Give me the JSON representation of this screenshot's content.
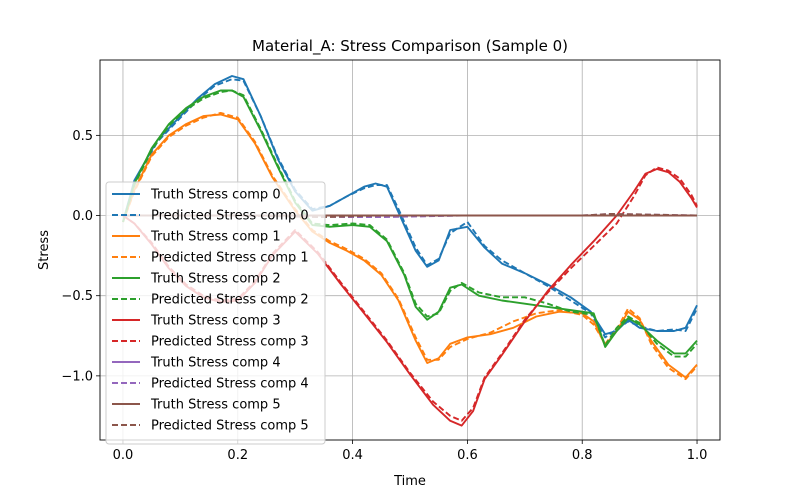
{
  "chart_data": {
    "type": "line",
    "title": "Material_A: Stress Comparison (Sample 0)",
    "xlabel": "Time",
    "ylabel": "Stress",
    "xlim": [
      -0.04,
      1.04
    ],
    "ylim": [
      -1.4,
      0.97
    ],
    "xticks": [
      0.0,
      0.2,
      0.4,
      0.6,
      0.8,
      1.0
    ],
    "xtick_labels": [
      "0.0",
      "0.2",
      "0.4",
      "0.6",
      "0.8",
      "1.0"
    ],
    "yticks": [
      0.5,
      0.0,
      -0.5,
      -1.0
    ],
    "ytick_labels": [
      "0.5",
      "0.0",
      "−0.5",
      "−1.0"
    ],
    "grid": true,
    "legend_position": "lower-left",
    "series": [
      {
        "name": "Truth Stress comp 0",
        "style": "solid",
        "color": "#1f77b4",
        "x": [
          0,
          0.02,
          0.06,
          0.1,
          0.13,
          0.16,
          0.19,
          0.21,
          0.24,
          0.27,
          0.3,
          0.33,
          0.36,
          0.39,
          0.42,
          0.44,
          0.46,
          0.48,
          0.51,
          0.53,
          0.55,
          0.57,
          0.6,
          0.63,
          0.66,
          0.7,
          0.74,
          0.78,
          0.815,
          0.84,
          0.86,
          0.88,
          0.9,
          0.93,
          0.96,
          0.98,
          1.0
        ],
        "y": [
          -0.04,
          0.22,
          0.47,
          0.62,
          0.73,
          0.82,
          0.87,
          0.85,
          0.62,
          0.35,
          0.15,
          0.03,
          0.06,
          0.12,
          0.18,
          0.2,
          0.18,
          0.02,
          -0.22,
          -0.32,
          -0.28,
          -0.09,
          -0.07,
          -0.2,
          -0.3,
          -0.36,
          -0.43,
          -0.51,
          -0.6,
          -0.74,
          -0.72,
          -0.65,
          -0.7,
          -0.72,
          -0.72,
          -0.7,
          -0.56
        ]
      },
      {
        "name": "Predicted Stress comp 0",
        "style": "dashed",
        "color": "#1f77b4",
        "x": [
          0,
          0.02,
          0.06,
          0.1,
          0.13,
          0.16,
          0.19,
          0.21,
          0.24,
          0.27,
          0.3,
          0.33,
          0.36,
          0.39,
          0.42,
          0.44,
          0.46,
          0.48,
          0.51,
          0.53,
          0.55,
          0.57,
          0.6,
          0.63,
          0.66,
          0.7,
          0.74,
          0.78,
          0.815,
          0.84,
          0.86,
          0.88,
          0.9,
          0.93,
          0.96,
          0.98,
          1.0
        ],
        "y": [
          -0.04,
          0.21,
          0.46,
          0.61,
          0.72,
          0.81,
          0.85,
          0.84,
          0.62,
          0.36,
          0.16,
          0.04,
          0.06,
          0.12,
          0.17,
          0.19,
          0.19,
          0.04,
          -0.2,
          -0.31,
          -0.27,
          -0.11,
          -0.04,
          -0.19,
          -0.28,
          -0.36,
          -0.44,
          -0.53,
          -0.61,
          -0.76,
          -0.71,
          -0.66,
          -0.69,
          -0.72,
          -0.71,
          -0.72,
          -0.58
        ]
      },
      {
        "name": "Truth Stress comp 1",
        "style": "solid",
        "color": "#ff7f0e",
        "x": [
          0,
          0.02,
          0.05,
          0.08,
          0.11,
          0.14,
          0.17,
          0.2,
          0.23,
          0.26,
          0.3,
          0.33,
          0.36,
          0.39,
          0.42,
          0.45,
          0.48,
          0.51,
          0.53,
          0.55,
          0.57,
          0.6,
          0.64,
          0.68,
          0.72,
          0.76,
          0.8,
          0.82,
          0.84,
          0.86,
          0.88,
          0.9,
          0.92,
          0.95,
          0.98,
          1.0
        ],
        "y": [
          -0.04,
          0.16,
          0.38,
          0.5,
          0.57,
          0.62,
          0.63,
          0.6,
          0.45,
          0.24,
          0.03,
          -0.1,
          -0.17,
          -0.22,
          -0.28,
          -0.37,
          -0.53,
          -0.78,
          -0.92,
          -0.89,
          -0.8,
          -0.76,
          -0.74,
          -0.7,
          -0.63,
          -0.6,
          -0.61,
          -0.66,
          -0.81,
          -0.72,
          -0.6,
          -0.65,
          -0.78,
          -0.93,
          -1.01,
          -0.93
        ]
      },
      {
        "name": "Predicted Stress comp 1",
        "style": "dashed",
        "color": "#ff7f0e",
        "x": [
          0,
          0.02,
          0.05,
          0.08,
          0.11,
          0.14,
          0.17,
          0.2,
          0.23,
          0.26,
          0.3,
          0.33,
          0.36,
          0.39,
          0.42,
          0.45,
          0.48,
          0.51,
          0.53,
          0.55,
          0.57,
          0.6,
          0.64,
          0.68,
          0.72,
          0.76,
          0.8,
          0.82,
          0.84,
          0.86,
          0.88,
          0.9,
          0.92,
          0.95,
          0.98,
          1.0
        ],
        "y": [
          -0.04,
          0.15,
          0.37,
          0.49,
          0.56,
          0.61,
          0.64,
          0.61,
          0.46,
          0.25,
          0.04,
          -0.09,
          -0.16,
          -0.21,
          -0.27,
          -0.36,
          -0.52,
          -0.76,
          -0.9,
          -0.9,
          -0.82,
          -0.77,
          -0.73,
          -0.66,
          -0.61,
          -0.59,
          -0.62,
          -0.68,
          -0.8,
          -0.71,
          -0.58,
          -0.64,
          -0.8,
          -0.95,
          -1.02,
          -0.94
        ]
      },
      {
        "name": "Truth Stress comp 2",
        "style": "solid",
        "color": "#2ca02c",
        "x": [
          0,
          0.02,
          0.05,
          0.08,
          0.11,
          0.14,
          0.17,
          0.19,
          0.21,
          0.24,
          0.27,
          0.3,
          0.33,
          0.36,
          0.4,
          0.43,
          0.46,
          0.49,
          0.51,
          0.53,
          0.55,
          0.57,
          0.59,
          0.62,
          0.66,
          0.7,
          0.74,
          0.78,
          0.82,
          0.84,
          0.86,
          0.88,
          0.9,
          0.93,
          0.96,
          0.98,
          1.0
        ],
        "y": [
          -0.04,
          0.2,
          0.42,
          0.57,
          0.67,
          0.74,
          0.78,
          0.78,
          0.74,
          0.53,
          0.3,
          0.08,
          -0.06,
          -0.07,
          -0.06,
          -0.07,
          -0.16,
          -0.37,
          -0.57,
          -0.65,
          -0.6,
          -0.45,
          -0.43,
          -0.5,
          -0.53,
          -0.55,
          -0.57,
          -0.59,
          -0.61,
          -0.82,
          -0.72,
          -0.64,
          -0.68,
          -0.78,
          -0.86,
          -0.86,
          -0.78
        ]
      },
      {
        "name": "Predicted Stress comp 2",
        "style": "dashed",
        "color": "#2ca02c",
        "x": [
          0,
          0.02,
          0.05,
          0.08,
          0.11,
          0.14,
          0.17,
          0.19,
          0.21,
          0.24,
          0.27,
          0.3,
          0.33,
          0.36,
          0.4,
          0.43,
          0.46,
          0.49,
          0.51,
          0.53,
          0.55,
          0.57,
          0.59,
          0.62,
          0.66,
          0.7,
          0.74,
          0.78,
          0.82,
          0.84,
          0.86,
          0.88,
          0.9,
          0.93,
          0.96,
          0.98,
          1.0
        ],
        "y": [
          -0.04,
          0.19,
          0.41,
          0.56,
          0.66,
          0.73,
          0.77,
          0.78,
          0.75,
          0.54,
          0.31,
          0.09,
          -0.05,
          -0.06,
          -0.05,
          -0.06,
          -0.15,
          -0.36,
          -0.55,
          -0.63,
          -0.61,
          -0.47,
          -0.42,
          -0.48,
          -0.51,
          -0.51,
          -0.55,
          -0.6,
          -0.62,
          -0.81,
          -0.7,
          -0.63,
          -0.67,
          -0.8,
          -0.88,
          -0.88,
          -0.8
        ]
      },
      {
        "name": "Truth Stress comp 3",
        "style": "solid",
        "color": "#d62728",
        "x": [
          0,
          0.02,
          0.05,
          0.08,
          0.11,
          0.14,
          0.17,
          0.2,
          0.23,
          0.26,
          0.3,
          0.34,
          0.38,
          0.42,
          0.46,
          0.5,
          0.54,
          0.57,
          0.59,
          0.61,
          0.63,
          0.66,
          0.7,
          0.74,
          0.78,
          0.82,
          0.86,
          0.89,
          0.91,
          0.93,
          0.95,
          0.97,
          0.99,
          1.0
        ],
        "y": [
          0.0,
          -0.05,
          -0.18,
          -0.33,
          -0.44,
          -0.51,
          -0.54,
          -0.53,
          -0.42,
          -0.25,
          -0.1,
          -0.24,
          -0.43,
          -0.61,
          -0.79,
          -0.99,
          -1.18,
          -1.28,
          -1.31,
          -1.22,
          -1.02,
          -0.87,
          -0.66,
          -0.47,
          -0.31,
          -0.16,
          -0.0,
          0.15,
          0.26,
          0.29,
          0.27,
          0.21,
          0.11,
          0.05
        ]
      },
      {
        "name": "Predicted Stress comp 3",
        "style": "dashed",
        "color": "#d62728",
        "x": [
          0,
          0.02,
          0.05,
          0.08,
          0.11,
          0.14,
          0.17,
          0.2,
          0.23,
          0.26,
          0.3,
          0.34,
          0.38,
          0.42,
          0.46,
          0.5,
          0.54,
          0.57,
          0.59,
          0.61,
          0.63,
          0.66,
          0.7,
          0.74,
          0.78,
          0.82,
          0.86,
          0.89,
          0.91,
          0.93,
          0.95,
          0.97,
          0.99,
          1.0
        ],
        "y": [
          0.0,
          -0.05,
          -0.17,
          -0.32,
          -0.43,
          -0.5,
          -0.53,
          -0.52,
          -0.41,
          -0.24,
          -0.09,
          -0.23,
          -0.42,
          -0.6,
          -0.78,
          -0.98,
          -1.16,
          -1.25,
          -1.28,
          -1.2,
          -1.01,
          -0.86,
          -0.65,
          -0.48,
          -0.33,
          -0.19,
          -0.05,
          0.12,
          0.25,
          0.3,
          0.28,
          0.23,
          0.13,
          0.06
        ]
      },
      {
        "name": "Truth Stress comp 4",
        "style": "solid",
        "color": "#9467bd",
        "x": [
          0,
          0.2,
          0.4,
          0.6,
          0.8,
          1.0
        ],
        "y": [
          0.0,
          0.0,
          0.0,
          0.0,
          0.0,
          0.0
        ]
      },
      {
        "name": "Predicted Stress comp 4",
        "style": "dashed",
        "color": "#9467bd",
        "x": [
          0,
          0.2,
          0.4,
          0.45,
          0.6,
          0.8,
          0.85,
          1.0
        ],
        "y": [
          0.0,
          0.0,
          -0.01,
          -0.01,
          0.0,
          0.0,
          0.01,
          0.0
        ]
      },
      {
        "name": "Truth Stress comp 5",
        "style": "solid",
        "color": "#8c564b",
        "x": [
          0,
          0.2,
          0.4,
          0.6,
          0.8,
          1.0
        ],
        "y": [
          0.0,
          0.0,
          0.0,
          0.0,
          0.0,
          0.0
        ]
      },
      {
        "name": "Predicted Stress comp 5",
        "style": "dashed",
        "color": "#8c564b",
        "x": [
          0,
          0.2,
          0.35,
          0.45,
          0.6,
          0.8,
          0.85,
          1.0
        ],
        "y": [
          0.0,
          0.0,
          -0.01,
          0.0,
          0.0,
          0.0,
          0.01,
          0.0
        ]
      }
    ]
  }
}
